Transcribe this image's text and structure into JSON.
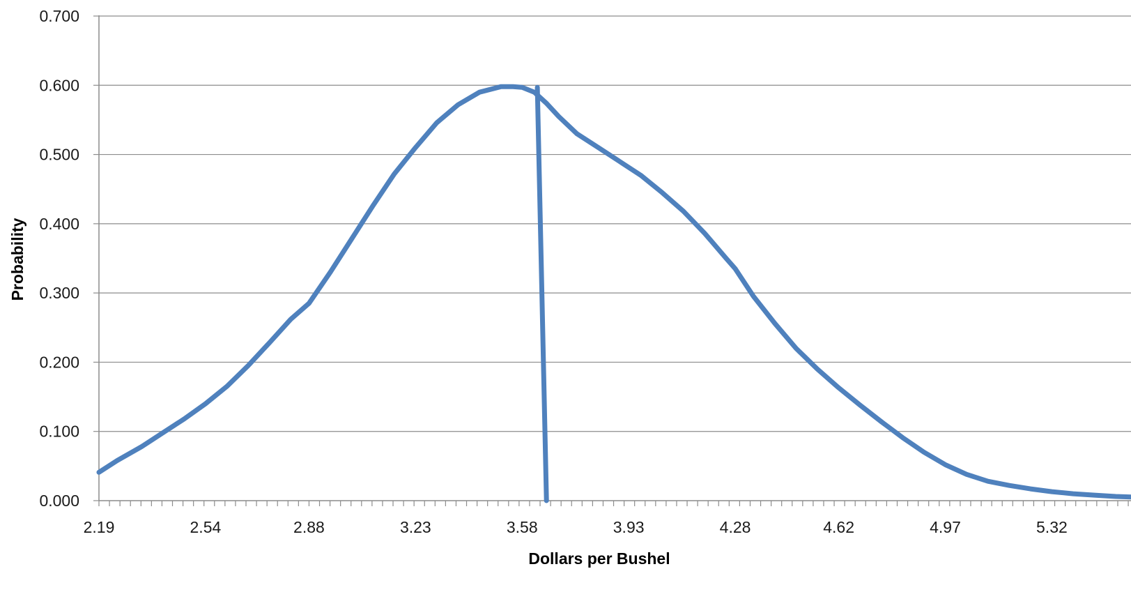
{
  "chart_data": {
    "type": "line",
    "title": "",
    "xlabel": "Dollars per Bushel",
    "ylabel": "Probability",
    "xlim": [
      2.19,
      5.6
    ],
    "ylim": [
      0,
      0.7
    ],
    "y_ticks": [
      "0.000",
      "0.100",
      "0.200",
      "0.300",
      "0.400",
      "0.500",
      "0.600",
      "0.700"
    ],
    "x_tick_labels": [
      "2.19",
      "2.54",
      "2.88",
      "3.23",
      "3.58",
      "3.93",
      "4.28",
      "4.62",
      "4.97",
      "5.32"
    ],
    "x_tick_values": [
      2.19,
      2.54,
      2.88,
      3.23,
      3.58,
      3.93,
      4.28,
      4.62,
      4.97,
      5.32
    ],
    "minor_tick_step": 0.0345,
    "grid": "horizontal",
    "legend": "none",
    "series_color": "#4F81BD",
    "series": [
      {
        "x": [
          2.19,
          2.25,
          2.33,
          2.4,
          2.47,
          2.54,
          2.61,
          2.68,
          2.75,
          2.82,
          2.88,
          2.95,
          3.02,
          3.09,
          3.16,
          3.23,
          3.3,
          3.37,
          3.44,
          3.51,
          3.55,
          3.58,
          3.62,
          3.66,
          3.7,
          3.76,
          3.83,
          3.9,
          3.97,
          4.04,
          4.11,
          4.18,
          4.25,
          4.28,
          4.34,
          4.41,
          4.48,
          4.55,
          4.62,
          4.69,
          4.76,
          4.83,
          4.9,
          4.97,
          5.04,
          5.11,
          5.18,
          5.25,
          5.32,
          5.39,
          5.46,
          5.53,
          5.6
        ],
        "y": [
          0.041,
          0.058,
          0.078,
          0.098,
          0.118,
          0.14,
          0.165,
          0.195,
          0.228,
          0.262,
          0.285,
          0.33,
          0.378,
          0.426,
          0.472,
          0.51,
          0.546,
          0.572,
          0.59,
          0.598,
          0.598,
          0.597,
          0.59,
          0.574,
          0.555,
          0.53,
          0.51,
          0.49,
          0.47,
          0.445,
          0.418,
          0.386,
          0.35,
          0.335,
          0.295,
          0.256,
          0.22,
          0.19,
          0.163,
          0.138,
          0.114,
          0.091,
          0.07,
          0.052,
          0.038,
          0.028,
          0.022,
          0.017,
          0.013,
          0.01,
          0.008,
          0.006,
          0.005
        ]
      },
      {
        "x": [
          3.63,
          3.66
        ],
        "y": [
          0.597,
          0.0
        ]
      }
    ]
  }
}
